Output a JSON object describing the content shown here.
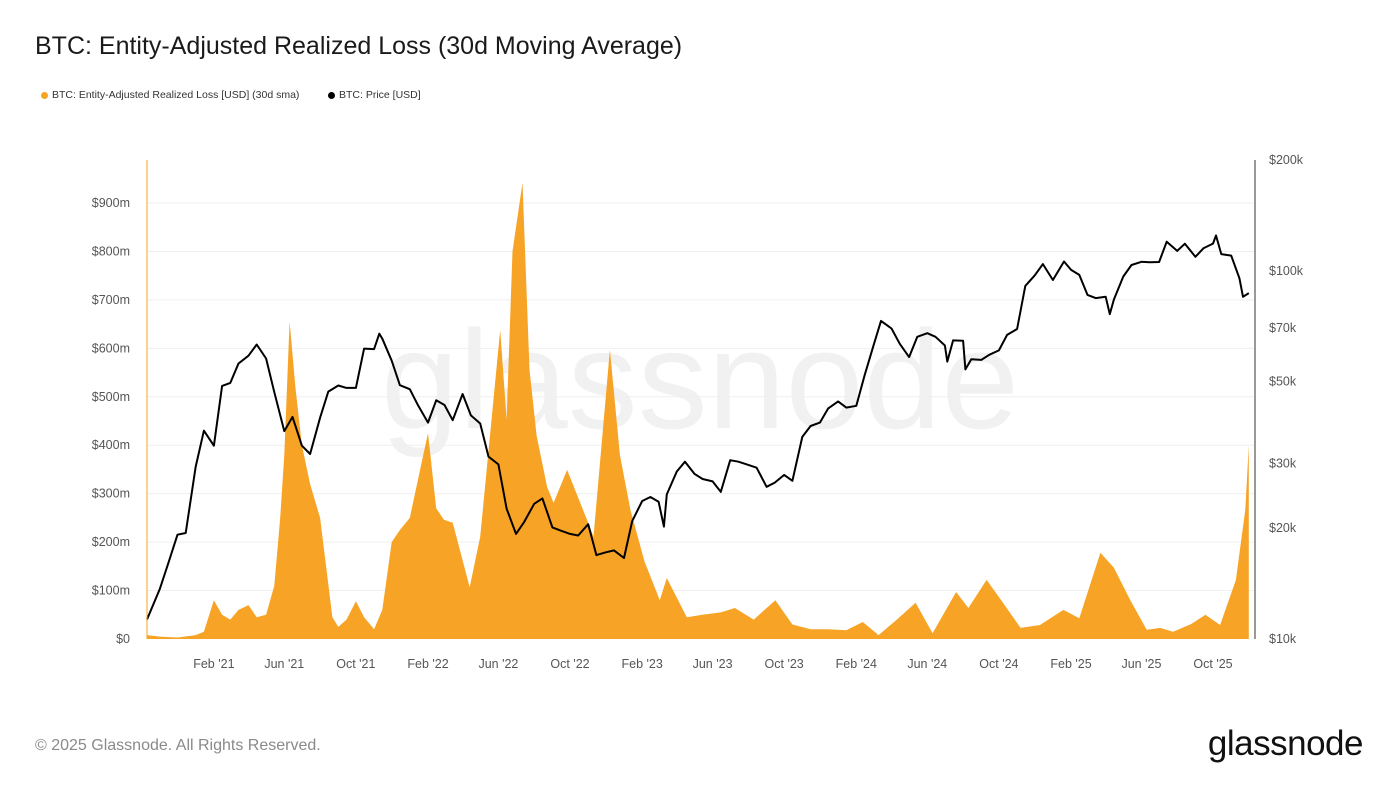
{
  "title": "BTC: Entity-Adjusted Realized Loss (30d Moving Average)",
  "legend": [
    {
      "label": "BTC: Entity-Adjusted Realized Loss [USD] (30d sma)",
      "color": "#f7a325"
    },
    {
      "label": "BTC: Price [USD]",
      "color": "#000000"
    }
  ],
  "footer": "© 2025 Glassnode. All Rights Reserved.",
  "logo": "glassnode",
  "watermark": "glassnode",
  "chart_data": {
    "type": "area+line",
    "title": "BTC: Entity-Adjusted Realized Loss (30d Moving Average)",
    "grid": true,
    "legend_placement": "top-left",
    "x_range": [
      "2020-10-10",
      "2025-12-03"
    ],
    "x_ticks": [
      {
        "label": "Feb '21",
        "date": "2021-02-01"
      },
      {
        "label": "Jun '21",
        "date": "2021-06-01"
      },
      {
        "label": "Oct '21",
        "date": "2021-10-01"
      },
      {
        "label": "Feb '22",
        "date": "2022-02-01"
      },
      {
        "label": "Jun '22",
        "date": "2022-06-01"
      },
      {
        "label": "Oct '22",
        "date": "2022-10-01"
      },
      {
        "label": "Feb '23",
        "date": "2023-02-01"
      },
      {
        "label": "Jun '23",
        "date": "2023-06-01"
      },
      {
        "label": "Oct '23",
        "date": "2023-10-01"
      },
      {
        "label": "Feb '24",
        "date": "2024-02-01"
      },
      {
        "label": "Jun '24",
        "date": "2024-06-01"
      },
      {
        "label": "Oct '24",
        "date": "2024-10-01"
      },
      {
        "label": "Feb '25",
        "date": "2025-02-01"
      },
      {
        "label": "Jun '25",
        "date": "2025-06-01"
      },
      {
        "label": "Oct '25",
        "date": "2025-10-01"
      }
    ],
    "y_left": {
      "scale": "linear",
      "range": [
        0,
        1000
      ],
      "unit": "USD millions",
      "ticks": [
        {
          "v": 0,
          "label": "$0"
        },
        {
          "v": 100,
          "label": "$100m"
        },
        {
          "v": 200,
          "label": "$200m"
        },
        {
          "v": 300,
          "label": "$300m"
        },
        {
          "v": 400,
          "label": "$400m"
        },
        {
          "v": 500,
          "label": "$500m"
        },
        {
          "v": 600,
          "label": "$600m"
        },
        {
          "v": 700,
          "label": "$700m"
        },
        {
          "v": 800,
          "label": "$800m"
        },
        {
          "v": 900,
          "label": "$900m"
        }
      ]
    },
    "y_right": {
      "scale": "log",
      "range": [
        10,
        200
      ],
      "unit": "USD thousands",
      "ticks": [
        {
          "v": 10,
          "label": "$10k"
        },
        {
          "v": 20,
          "label": "$20k"
        },
        {
          "v": 30,
          "label": "$30k"
        },
        {
          "v": 50,
          "label": "$50k"
        },
        {
          "v": 70,
          "label": "$70k"
        },
        {
          "v": 100,
          "label": "$100k"
        },
        {
          "v": 200,
          "label": "$200k"
        }
      ]
    },
    "series": [
      {
        "name": "BTC: Entity-Adjusted Realized Loss [USD] (30d sma)",
        "axis": "left",
        "style": "area",
        "color": "#f7a325",
        "points": [
          [
            "2020-10-10",
            8
          ],
          [
            "2020-11-01",
            5
          ],
          [
            "2020-12-01",
            3
          ],
          [
            "2021-01-01",
            8
          ],
          [
            "2021-01-15",
            15
          ],
          [
            "2021-02-01",
            80
          ],
          [
            "2021-02-15",
            50
          ],
          [
            "2021-03-01",
            40
          ],
          [
            "2021-03-15",
            60
          ],
          [
            "2021-04-01",
            70
          ],
          [
            "2021-04-15",
            45
          ],
          [
            "2021-05-01",
            50
          ],
          [
            "2021-05-15",
            110
          ],
          [
            "2021-05-25",
            250
          ],
          [
            "2021-06-01",
            380
          ],
          [
            "2021-06-10",
            655
          ],
          [
            "2021-06-20",
            520
          ],
          [
            "2021-07-01",
            400
          ],
          [
            "2021-07-15",
            320
          ],
          [
            "2021-08-01",
            250
          ],
          [
            "2021-08-22",
            45
          ],
          [
            "2021-09-01",
            25
          ],
          [
            "2021-09-15",
            40
          ],
          [
            "2021-10-01",
            78
          ],
          [
            "2021-10-15",
            45
          ],
          [
            "2021-11-01",
            20
          ],
          [
            "2021-11-15",
            60
          ],
          [
            "2021-12-01",
            200
          ],
          [
            "2021-12-15",
            225
          ],
          [
            "2022-01-01",
            250
          ],
          [
            "2022-01-15",
            330
          ],
          [
            "2022-02-01",
            425
          ],
          [
            "2022-02-15",
            270
          ],
          [
            "2022-02-28",
            246
          ],
          [
            "2022-03-15",
            240
          ],
          [
            "2022-04-13",
            107
          ],
          [
            "2022-05-01",
            211
          ],
          [
            "2022-05-20",
            450
          ],
          [
            "2022-06-04",
            638
          ],
          [
            "2022-06-15",
            452
          ],
          [
            "2022-06-25",
            800
          ],
          [
            "2022-07-12",
            942
          ],
          [
            "2022-07-24",
            556
          ],
          [
            "2022-08-05",
            420
          ],
          [
            "2022-08-23",
            314
          ],
          [
            "2022-09-03",
            281
          ],
          [
            "2022-09-26",
            349
          ],
          [
            "2022-10-30",
            246
          ],
          [
            "2022-11-10",
            211
          ],
          [
            "2022-12-08",
            597
          ],
          [
            "2022-12-25",
            380
          ],
          [
            "2023-01-12",
            267
          ],
          [
            "2023-02-05",
            160
          ],
          [
            "2023-03-03",
            80
          ],
          [
            "2023-03-15",
            126
          ],
          [
            "2023-04-18",
            45
          ],
          [
            "2023-05-15",
            50
          ],
          [
            "2023-06-15",
            55
          ],
          [
            "2023-07-09",
            64
          ],
          [
            "2023-08-10",
            40
          ],
          [
            "2023-09-16",
            80
          ],
          [
            "2023-10-15",
            30
          ],
          [
            "2023-11-15",
            20
          ],
          [
            "2023-12-15",
            20
          ],
          [
            "2024-01-15",
            18
          ],
          [
            "2024-02-12",
            35
          ],
          [
            "2024-03-10",
            8
          ],
          [
            "2024-04-10",
            40
          ],
          [
            "2024-05-12",
            75
          ],
          [
            "2024-06-10",
            12
          ],
          [
            "2024-07-20",
            97
          ],
          [
            "2024-08-10",
            64
          ],
          [
            "2024-09-10",
            122
          ],
          [
            "2024-10-05",
            80
          ],
          [
            "2024-11-07",
            23
          ],
          [
            "2024-12-10",
            29
          ],
          [
            "2025-01-19",
            60
          ],
          [
            "2025-02-15",
            43
          ],
          [
            "2025-03-23",
            178
          ],
          [
            "2025-04-15",
            147
          ],
          [
            "2025-05-13",
            80
          ],
          [
            "2025-06-10",
            19
          ],
          [
            "2025-07-03",
            23
          ],
          [
            "2025-07-25",
            15
          ],
          [
            "2025-08-25",
            31
          ],
          [
            "2025-09-18",
            50
          ],
          [
            "2025-10-13",
            29
          ],
          [
            "2025-11-09",
            122
          ],
          [
            "2025-11-25",
            267
          ],
          [
            "2025-12-01",
            400
          ]
        ]
      },
      {
        "name": "BTC: Price [USD]",
        "axis": "right",
        "style": "line",
        "color": "#000000",
        "points": [
          [
            "2020-10-10",
            11.3
          ],
          [
            "2020-11-01",
            13.7
          ],
          [
            "2020-11-15",
            16
          ],
          [
            "2020-12-01",
            19.2
          ],
          [
            "2020-12-15",
            19.4
          ],
          [
            "2021-01-01",
            29.4
          ],
          [
            "2021-01-15",
            36.8
          ],
          [
            "2021-02-01",
            33.5
          ],
          [
            "2021-02-15",
            48.7
          ],
          [
            "2021-03-01",
            49.6
          ],
          [
            "2021-03-15",
            56
          ],
          [
            "2021-04-01",
            58.8
          ],
          [
            "2021-04-15",
            63.1
          ],
          [
            "2021-05-01",
            57.8
          ],
          [
            "2021-05-15",
            46.8
          ],
          [
            "2021-06-01",
            36.7
          ],
          [
            "2021-06-15",
            40.1
          ],
          [
            "2021-07-01",
            33.5
          ],
          [
            "2021-07-15",
            31.8
          ],
          [
            "2021-08-01",
            39.9
          ],
          [
            "2021-08-15",
            47
          ],
          [
            "2021-09-01",
            48.8
          ],
          [
            "2021-09-15",
            48.1
          ],
          [
            "2021-10-01",
            48.1
          ],
          [
            "2021-10-15",
            61.5
          ],
          [
            "2021-11-01",
            61.3
          ],
          [
            "2021-11-10",
            67.5
          ],
          [
            "2021-11-15",
            65.4
          ],
          [
            "2021-12-01",
            57
          ],
          [
            "2021-12-15",
            48.9
          ],
          [
            "2022-01-01",
            47.7
          ],
          [
            "2022-01-15",
            43.1
          ],
          [
            "2022-02-01",
            38.7
          ],
          [
            "2022-02-15",
            44.5
          ],
          [
            "2022-03-01",
            43.2
          ],
          [
            "2022-03-15",
            39.3
          ],
          [
            "2022-04-01",
            46.3
          ],
          [
            "2022-04-15",
            40.5
          ],
          [
            "2022-05-01",
            38.5
          ],
          [
            "2022-05-15",
            31.3
          ],
          [
            "2022-06-01",
            29.8
          ],
          [
            "2022-06-15",
            22.6
          ],
          [
            "2022-07-01",
            19.3
          ],
          [
            "2022-07-15",
            20.8
          ],
          [
            "2022-08-01",
            23.3
          ],
          [
            "2022-08-15",
            24.1
          ],
          [
            "2022-09-01",
            20.1
          ],
          [
            "2022-09-15",
            19.7
          ],
          [
            "2022-10-01",
            19.3
          ],
          [
            "2022-10-15",
            19.1
          ],
          [
            "2022-11-01",
            20.5
          ],
          [
            "2022-11-15",
            16.9
          ],
          [
            "2022-12-01",
            17.2
          ],
          [
            "2022-12-15",
            17.4
          ],
          [
            "2023-01-01",
            16.6
          ],
          [
            "2023-01-15",
            20.9
          ],
          [
            "2023-02-01",
            23.7
          ],
          [
            "2023-02-15",
            24.3
          ],
          [
            "2023-03-01",
            23.6
          ],
          [
            "2023-03-10",
            20.2
          ],
          [
            "2023-03-15",
            24.7
          ],
          [
            "2023-04-01",
            28.5
          ],
          [
            "2023-04-15",
            30.3
          ],
          [
            "2023-05-01",
            28.1
          ],
          [
            "2023-05-15",
            27.2
          ],
          [
            "2023-06-01",
            26.8
          ],
          [
            "2023-06-15",
            25.1
          ],
          [
            "2023-07-01",
            30.6
          ],
          [
            "2023-07-15",
            30.3
          ],
          [
            "2023-08-01",
            29.7
          ],
          [
            "2023-08-15",
            29.2
          ],
          [
            "2023-09-01",
            25.9
          ],
          [
            "2023-09-15",
            26.6
          ],
          [
            "2023-10-01",
            27.9
          ],
          [
            "2023-10-15",
            26.9
          ],
          [
            "2023-11-01",
            35.4
          ],
          [
            "2023-11-15",
            37.9
          ],
          [
            "2023-12-01",
            38.7
          ],
          [
            "2023-12-15",
            42.3
          ],
          [
            "2024-01-01",
            44.2
          ],
          [
            "2024-01-15",
            42.5
          ],
          [
            "2024-02-01",
            43
          ],
          [
            "2024-02-15",
            51.9
          ],
          [
            "2024-03-01",
            62.4
          ],
          [
            "2024-03-14",
            73.1
          ],
          [
            "2024-04-01",
            69.7
          ],
          [
            "2024-04-15",
            63.4
          ],
          [
            "2024-05-01",
            58.3
          ],
          [
            "2024-05-15",
            66.2
          ],
          [
            "2024-06-01",
            67.7
          ],
          [
            "2024-06-15",
            66.2
          ],
          [
            "2024-07-01",
            62.7
          ],
          [
            "2024-07-05",
            56.7
          ],
          [
            "2024-07-15",
            64.7
          ],
          [
            "2024-08-01",
            64.6
          ],
          [
            "2024-08-05",
            54
          ],
          [
            "2024-08-15",
            57.5
          ],
          [
            "2024-09-01",
            57.3
          ],
          [
            "2024-09-15",
            59.2
          ],
          [
            "2024-10-01",
            60.8
          ],
          [
            "2024-10-15",
            67
          ],
          [
            "2024-11-01",
            69.5
          ],
          [
            "2024-11-15",
            91
          ],
          [
            "2024-12-01",
            97.2
          ],
          [
            "2024-12-15",
            104.3
          ],
          [
            "2025-01-01",
            94.4
          ],
          [
            "2025-01-20",
            106
          ],
          [
            "2025-02-01",
            100.6
          ],
          [
            "2025-02-15",
            97.5
          ],
          [
            "2025-03-01",
            86
          ],
          [
            "2025-03-15",
            84.3
          ],
          [
            "2025-04-01",
            85
          ],
          [
            "2025-04-08",
            76.3
          ],
          [
            "2025-04-15",
            83.6
          ],
          [
            "2025-05-01",
            96.5
          ],
          [
            "2025-05-15",
            103.7
          ],
          [
            "2025-06-01",
            105.8
          ],
          [
            "2025-06-15",
            105.5
          ],
          [
            "2025-07-01",
            105.7
          ],
          [
            "2025-07-14",
            120
          ],
          [
            "2025-08-01",
            113.3
          ],
          [
            "2025-08-14",
            118.5
          ],
          [
            "2025-09-01",
            109.2
          ],
          [
            "2025-09-15",
            115.3
          ],
          [
            "2025-10-01",
            118.6
          ],
          [
            "2025-10-06",
            124.7
          ],
          [
            "2025-10-15",
            111
          ],
          [
            "2025-11-01",
            110
          ],
          [
            "2025-11-15",
            95.5
          ],
          [
            "2025-11-21",
            85
          ],
          [
            "2025-12-01",
            87
          ]
        ]
      }
    ]
  }
}
